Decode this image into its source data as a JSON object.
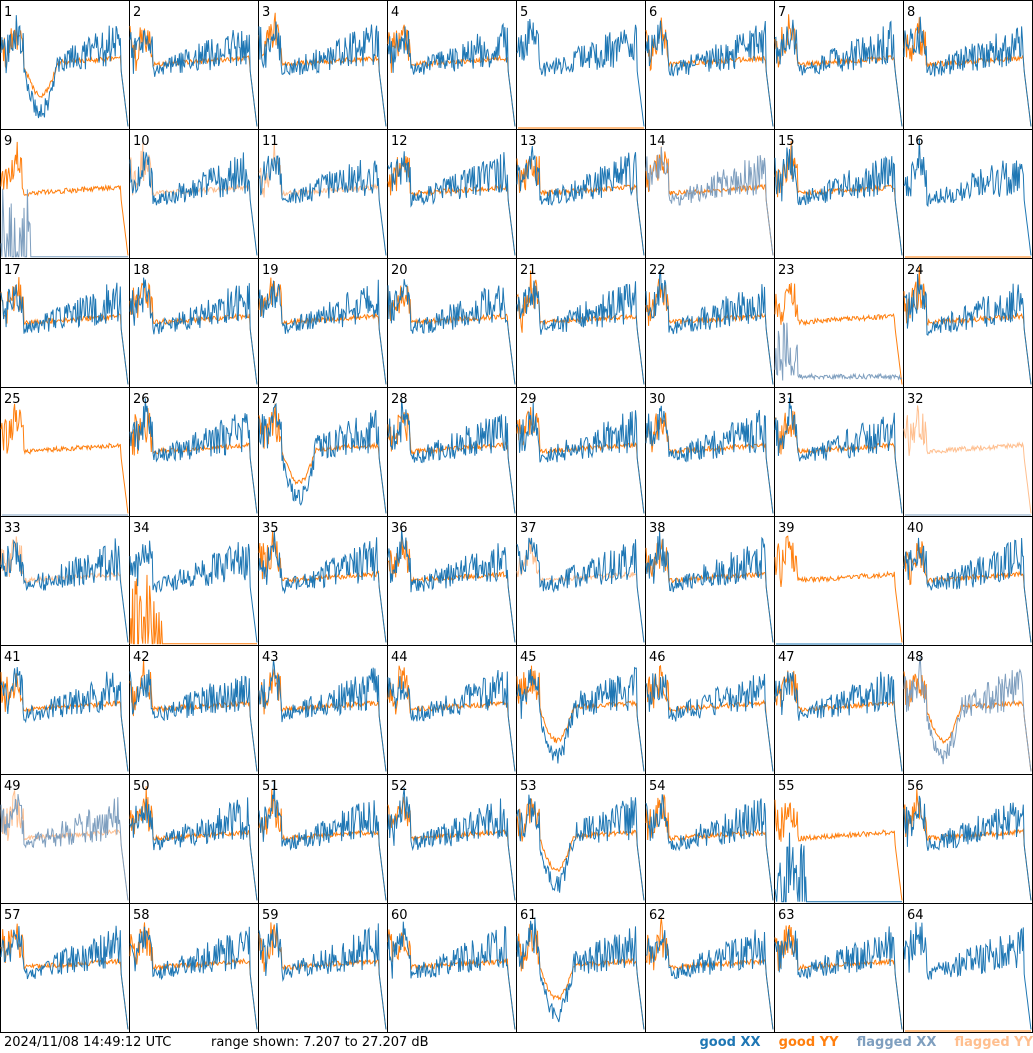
{
  "timestamp": "2024/11/08 14:49:12 UTC",
  "range_text": "range shown: 7.207 to 27.207 dB",
  "legend": {
    "good_xx": "good XX",
    "good_yy": "good YY",
    "flagged_xx": "flagged XX",
    "flagged_yy": "flagged YY"
  },
  "colors": {
    "good_xx": "#1f77b4",
    "good_yy": "#ff7f0e",
    "flagged_xx": "#7f9fbf",
    "flagged_yy": "#ffbf8f"
  },
  "chart_data": {
    "type": "line",
    "layout": "small-multiples 8x8",
    "ylim": [
      7.207,
      27.207
    ],
    "yunit": "dB",
    "panels": [
      {
        "id": "1",
        "xx": "good",
        "yy": "good",
        "shape": "deep-dip"
      },
      {
        "id": "2",
        "xx": "good",
        "yy": "good",
        "shape": "normal"
      },
      {
        "id": "3",
        "xx": "good",
        "yy": "good",
        "shape": "normal"
      },
      {
        "id": "4",
        "xx": "good",
        "yy": "good",
        "shape": "normal"
      },
      {
        "id": "5",
        "xx": "good",
        "yy": "good",
        "shape": "xx-only"
      },
      {
        "id": "6",
        "xx": "good",
        "yy": "good",
        "shape": "normal"
      },
      {
        "id": "7",
        "xx": "good",
        "yy": "good",
        "shape": "normal"
      },
      {
        "id": "8",
        "xx": "good",
        "yy": "good",
        "shape": "normal"
      },
      {
        "id": "9",
        "xx": "flagged",
        "yy": "good",
        "shape": "xx-spikes"
      },
      {
        "id": "10",
        "xx": "good",
        "yy": "flagged",
        "shape": "normal"
      },
      {
        "id": "11",
        "xx": "good",
        "yy": "flagged",
        "shape": "normal"
      },
      {
        "id": "12",
        "xx": "good",
        "yy": "good",
        "shape": "normal"
      },
      {
        "id": "13",
        "xx": "good",
        "yy": "good",
        "shape": "normal"
      },
      {
        "id": "14",
        "xx": "flagged",
        "yy": "good",
        "shape": "normal"
      },
      {
        "id": "15",
        "xx": "good",
        "yy": "good",
        "shape": "normal"
      },
      {
        "id": "16",
        "xx": "good",
        "yy": "good",
        "shape": "xx-only"
      },
      {
        "id": "17",
        "xx": "good",
        "yy": "good",
        "shape": "normal"
      },
      {
        "id": "18",
        "xx": "good",
        "yy": "good",
        "shape": "normal"
      },
      {
        "id": "19",
        "xx": "good",
        "yy": "good",
        "shape": "normal"
      },
      {
        "id": "20",
        "xx": "good",
        "yy": "good",
        "shape": "normal"
      },
      {
        "id": "21",
        "xx": "good",
        "yy": "good",
        "shape": "normal"
      },
      {
        "id": "22",
        "xx": "good",
        "yy": "good",
        "shape": "normal"
      },
      {
        "id": "23",
        "xx": "flagged",
        "yy": "good",
        "shape": "xx-low"
      },
      {
        "id": "24",
        "xx": "good",
        "yy": "good",
        "shape": "normal"
      },
      {
        "id": "25",
        "xx": "flagged",
        "yy": "good",
        "shape": "yy-only"
      },
      {
        "id": "26",
        "xx": "good",
        "yy": "good",
        "shape": "normal"
      },
      {
        "id": "27",
        "xx": "good",
        "yy": "good",
        "shape": "deep-dip"
      },
      {
        "id": "28",
        "xx": "good",
        "yy": "good",
        "shape": "normal"
      },
      {
        "id": "29",
        "xx": "good",
        "yy": "good",
        "shape": "normal"
      },
      {
        "id": "30",
        "xx": "good",
        "yy": "good",
        "shape": "normal"
      },
      {
        "id": "31",
        "xx": "good",
        "yy": "good",
        "shape": "normal"
      },
      {
        "id": "32",
        "xx": "flagged",
        "yy": "flagged",
        "shape": "yy-only"
      },
      {
        "id": "33",
        "xx": "good",
        "yy": "flagged",
        "shape": "normal"
      },
      {
        "id": "34",
        "xx": "good",
        "yy": "good",
        "shape": "yy-spikes"
      },
      {
        "id": "35",
        "xx": "good",
        "yy": "good",
        "shape": "normal"
      },
      {
        "id": "36",
        "xx": "good",
        "yy": "good",
        "shape": "normal"
      },
      {
        "id": "37",
        "xx": "good",
        "yy": "flagged",
        "shape": "normal"
      },
      {
        "id": "38",
        "xx": "good",
        "yy": "good",
        "shape": "normal"
      },
      {
        "id": "39",
        "xx": "good",
        "yy": "good",
        "shape": "yy-only"
      },
      {
        "id": "40",
        "xx": "good",
        "yy": "good",
        "shape": "normal"
      },
      {
        "id": "41",
        "xx": "good",
        "yy": "good",
        "shape": "normal"
      },
      {
        "id": "42",
        "xx": "good",
        "yy": "good",
        "shape": "normal"
      },
      {
        "id": "43",
        "xx": "good",
        "yy": "good",
        "shape": "normal"
      },
      {
        "id": "44",
        "xx": "good",
        "yy": "good",
        "shape": "normal"
      },
      {
        "id": "45",
        "xx": "good",
        "yy": "good",
        "shape": "deep-dip"
      },
      {
        "id": "46",
        "xx": "good",
        "yy": "good",
        "shape": "normal"
      },
      {
        "id": "47",
        "xx": "good",
        "yy": "good",
        "shape": "normal"
      },
      {
        "id": "48",
        "xx": "flagged",
        "yy": "good",
        "shape": "deep-dip"
      },
      {
        "id": "49",
        "xx": "flagged",
        "yy": "flagged",
        "shape": "normal"
      },
      {
        "id": "50",
        "xx": "good",
        "yy": "good",
        "shape": "normal"
      },
      {
        "id": "51",
        "xx": "good",
        "yy": "good",
        "shape": "normal"
      },
      {
        "id": "52",
        "xx": "good",
        "yy": "good",
        "shape": "normal"
      },
      {
        "id": "53",
        "xx": "good",
        "yy": "good",
        "shape": "deep-dip"
      },
      {
        "id": "54",
        "xx": "good",
        "yy": "good",
        "shape": "normal"
      },
      {
        "id": "55",
        "xx": "good",
        "yy": "good",
        "shape": "xx-spikes"
      },
      {
        "id": "56",
        "xx": "good",
        "yy": "good",
        "shape": "normal"
      },
      {
        "id": "57",
        "xx": "good",
        "yy": "good",
        "shape": "normal"
      },
      {
        "id": "58",
        "xx": "good",
        "yy": "good",
        "shape": "normal"
      },
      {
        "id": "59",
        "xx": "good",
        "yy": "good",
        "shape": "normal"
      },
      {
        "id": "60",
        "xx": "good",
        "yy": "good",
        "shape": "normal"
      },
      {
        "id": "61",
        "xx": "good",
        "yy": "good",
        "shape": "deep-dip"
      },
      {
        "id": "62",
        "xx": "good",
        "yy": "good",
        "shape": "normal"
      },
      {
        "id": "63",
        "xx": "good",
        "yy": "good",
        "shape": "normal"
      },
      {
        "id": "64",
        "xx": "good",
        "yy": "good",
        "shape": "xx-only"
      }
    ]
  }
}
